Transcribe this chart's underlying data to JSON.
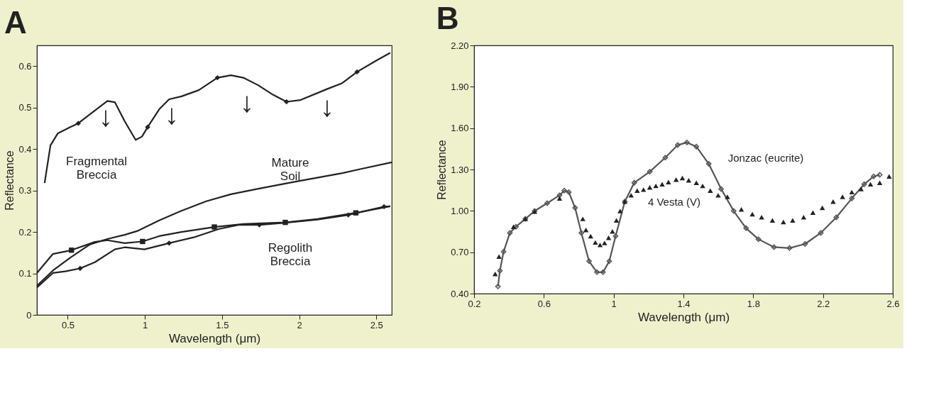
{
  "chart_data": [
    {
      "type": "line",
      "title": "A",
      "xlabel": "Wavelength (μm)",
      "ylabel": "Reflectance",
      "xlim": [
        0.3,
        2.6
      ],
      "ylim": [
        0,
        0.65
      ],
      "xticks": [
        0.5,
        1,
        1.5,
        2,
        2.5
      ],
      "yticks": [
        0,
        0.1,
        0.2,
        0.3,
        0.4,
        0.5,
        0.6
      ],
      "grid": false,
      "series": [
        {
          "color": "#222222",
          "x": [
            0.35,
            0.388,
            0.436,
            0.516,
            0.568,
            0.644,
            0.757,
            0.805,
            0.869,
            0.94,
            0.981,
            1.018,
            1.093,
            1.157,
            1.237,
            1.349,
            1.47,
            1.558,
            1.638,
            1.734,
            1.83,
            1.918,
            2.006,
            2.183,
            2.279,
            2.375,
            2.503,
            2.59
          ],
          "values": [
            0.318,
            0.409,
            0.438,
            0.453,
            0.462,
            0.484,
            0.516,
            0.513,
            0.467,
            0.422,
            0.43,
            0.453,
            0.496,
            0.52,
            0.527,
            0.542,
            0.572,
            0.578,
            0.572,
            0.554,
            0.531,
            0.514,
            0.518,
            0.545,
            0.559,
            0.586,
            0.614,
            0.632
          ]
        },
        {
          "type": "scatter",
          "marker": "diamond",
          "color": "#222222",
          "x": [
            0.568,
            1.018,
            1.47,
            1.918,
            2.375
          ],
          "values": [
            0.462,
            0.453,
            0.572,
            0.514,
            0.586
          ]
        },
        {
          "color": "#222222",
          "x": [
            0.3,
            0.404,
            0.516,
            0.644,
            0.757,
            0.869,
            0.949,
            1.093,
            1.237,
            1.398,
            1.558,
            1.718,
            1.958,
            2.28,
            2.4,
            2.6
          ],
          "values": [
            0.07,
            0.107,
            0.138,
            0.17,
            0.183,
            0.193,
            0.202,
            0.228,
            0.251,
            0.274,
            0.291,
            0.303,
            0.32,
            0.342,
            0.352,
            0.368
          ]
        },
        {
          "color": "#222222",
          "x": [
            0.3,
            0.404,
            0.524,
            0.676,
            0.757,
            0.869,
            0.985,
            1.093,
            1.237,
            1.45,
            1.638,
            1.91,
            2.118,
            2.367,
            2.59
          ],
          "values": [
            0.101,
            0.147,
            0.156,
            0.176,
            0.18,
            0.173,
            0.177,
            0.19,
            0.2,
            0.212,
            0.219,
            0.223,
            0.231,
            0.246,
            0.262
          ]
        },
        {
          "type": "scatter",
          "marker": "square",
          "color": "#222222",
          "x": [
            0.524,
            0.985,
            1.45,
            1.91,
            2.367
          ],
          "values": [
            0.156,
            0.177,
            0.212,
            0.223,
            0.246
          ]
        },
        {
          "color": "#222222",
          "x": [
            0.3,
            0.404,
            0.485,
            0.58,
            0.676,
            0.805,
            0.869,
            0.997,
            1.157,
            1.317,
            1.478,
            1.606,
            1.742,
            1.91,
            2.118,
            2.318,
            2.55,
            2.59
          ],
          "values": [
            0.066,
            0.101,
            0.105,
            0.112,
            0.127,
            0.158,
            0.163,
            0.158,
            0.173,
            0.187,
            0.207,
            0.217,
            0.217,
            0.222,
            0.23,
            0.241,
            0.261,
            0.262
          ]
        },
        {
          "type": "scatter",
          "marker": "diamond",
          "color": "#222222",
          "x": [
            0.58,
            1.157,
            1.742,
            2.318,
            2.55
          ],
          "values": [
            0.112,
            0.173,
            0.217,
            0.241,
            0.261
          ]
        }
      ],
      "annotations": [
        "Fragmental\nBreccia",
        "Mature\nSoil",
        "Regolith\nBreccia",
        "↓",
        "↓",
        "↓",
        "↓"
      ]
    },
    {
      "type": "scatter",
      "title": "B",
      "xlabel": "Wavelength (μm)",
      "ylabel": "Reflectance",
      "xlim": [
        0.2,
        2.6
      ],
      "ylim": [
        0.4,
        2.2
      ],
      "xticks": [
        0.2,
        0.6,
        1,
        1.4,
        1.8,
        2.2,
        2.6
      ],
      "yticks": [
        {
          "value": 0.4,
          "label": "0.40"
        },
        {
          "value": 0.7,
          "label": "0.70"
        },
        {
          "value": 1.0,
          "label": "1.00"
        },
        {
          "value": 1.3,
          "label": "1.30"
        },
        {
          "value": 1.6,
          "label": "1.60"
        },
        {
          "value": 1.9,
          "label": "1.90"
        },
        {
          "value": 2.2,
          "label": "2.20"
        }
      ],
      "grid": false,
      "series": [
        {
          "type": "line",
          "marker": "diamond",
          "color": "#555555",
          "x": [
            0.337,
            0.348,
            0.369,
            0.405,
            0.44,
            0.494,
            0.547,
            0.619,
            0.69,
            0.717,
            0.743,
            0.779,
            0.815,
            0.859,
            0.904,
            0.939,
            0.975,
            1.011,
            1.064,
            1.118,
            1.207,
            1.296,
            1.367,
            1.42,
            1.474,
            1.545,
            1.616,
            1.688,
            1.759,
            1.83,
            1.919,
            2.008,
            2.097,
            2.187,
            2.276,
            2.365,
            2.436,
            2.49,
            2.525
          ],
          "values": [
            0.452,
            0.566,
            0.703,
            0.84,
            0.885,
            0.942,
            0.999,
            1.056,
            1.113,
            1.147,
            1.136,
            1.022,
            0.84,
            0.635,
            0.555,
            0.555,
            0.635,
            0.817,
            1.067,
            1.204,
            1.284,
            1.386,
            1.477,
            1.496,
            1.466,
            1.341,
            1.159,
            0.999,
            0.874,
            0.794,
            0.737,
            0.73,
            0.76,
            0.84,
            0.953,
            1.09,
            1.193,
            1.25,
            1.261
          ]
        },
        {
          "marker": "triangle",
          "color": "#222222",
          "x": [
            0.321,
            0.343,
            0.426,
            0.494,
            0.547,
            0.69,
            0.823,
            0.841,
            0.868,
            0.895,
            0.922,
            0.948,
            0.971,
            0.993,
            1.016,
            1.037,
            1.064,
            1.1,
            1.135,
            1.171,
            1.207,
            1.242,
            1.278,
            1.314,
            1.358,
            1.394,
            1.43,
            1.474,
            1.51,
            1.554,
            1.599,
            1.652,
            1.732,
            1.795,
            1.848,
            1.91,
            1.973,
            2.026,
            2.089,
            2.142,
            2.196,
            2.258,
            2.312,
            2.365,
            2.418,
            2.472,
            2.525,
            2.579
          ],
          "values": [
            0.543,
            0.669,
            0.885,
            0.942,
            0.995,
            1.09,
            0.942,
            0.862,
            0.817,
            0.771,
            0.753,
            0.767,
            0.805,
            0.851,
            0.931,
            0.999,
            1.067,
            1.113,
            1.147,
            1.154,
            1.17,
            1.181,
            1.193,
            1.209,
            1.227,
            1.238,
            1.222,
            1.204,
            1.181,
            1.147,
            1.113,
            1.102,
            1.011,
            0.976,
            0.954,
            0.931,
            0.919,
            0.931,
            0.954,
            0.988,
            1.022,
            1.067,
            1.102,
            1.136,
            1.159,
            1.193,
            1.204,
            1.25
          ]
        }
      ],
      "annotations": [
        "Jonzac (eucrite)",
        "4 Vesta (V)"
      ]
    }
  ]
}
